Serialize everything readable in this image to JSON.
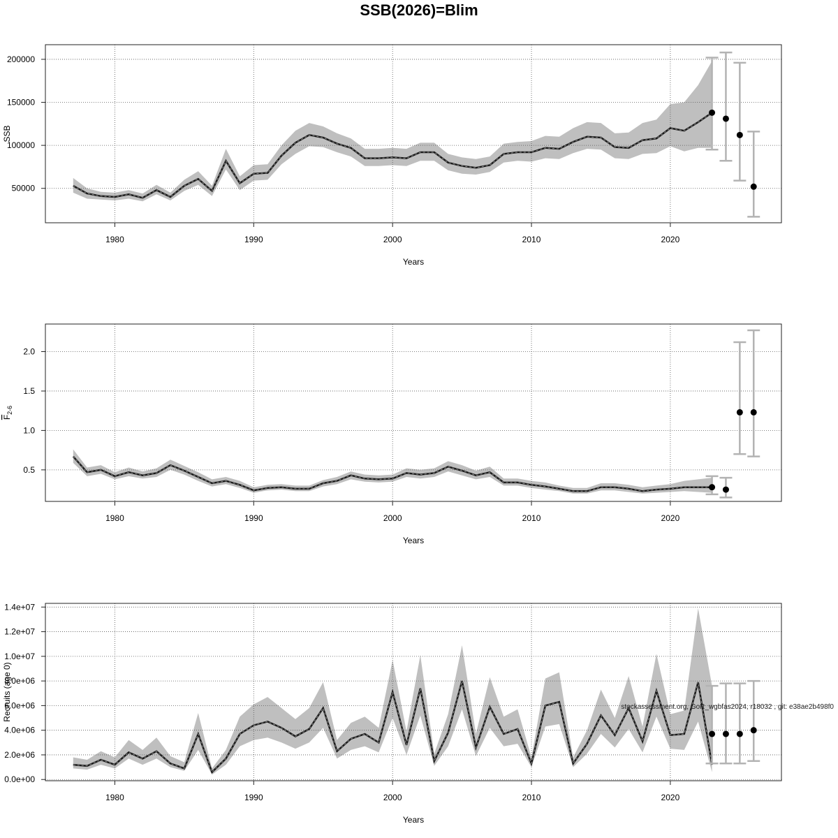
{
  "title": "SSB(2026)=Blim",
  "watermark": "stockassessment.org, GoR_wgbfas2024, r18032 , git: e38ae2b498f0",
  "colors": {
    "band": "#bfbfbf",
    "line": "#1a1a1a",
    "errorbar": "#b3b3b3",
    "point": "#000000",
    "grid": "#555555"
  },
  "chart_data": [
    {
      "type": "line",
      "name": "ssb-panel",
      "xlabel": "Years",
      "ylabel": "SSB",
      "xlim": [
        1975,
        2028
      ],
      "ylim": [
        10000,
        217000
      ],
      "xticks": [
        1980,
        1990,
        2000,
        2010,
        2020
      ],
      "yticks": [
        50000,
        100000,
        150000,
        200000
      ],
      "ytick_labels": [
        "50000",
        "100000",
        "150000",
        "200000"
      ],
      "grid": true,
      "x": [
        1977,
        1978,
        1979,
        1980,
        1981,
        1982,
        1983,
        1984,
        1985,
        1986,
        1987,
        1988,
        1989,
        1990,
        1991,
        1992,
        1993,
        1994,
        1995,
        1996,
        1997,
        1998,
        1999,
        2000,
        2001,
        2002,
        2003,
        2004,
        2005,
        2006,
        2007,
        2008,
        2009,
        2010,
        2011,
        2012,
        2013,
        2014,
        2015,
        2016,
        2017,
        2018,
        2019,
        2020,
        2021,
        2022,
        2023
      ],
      "estimate": [
        53000,
        44000,
        41000,
        40000,
        43000,
        39000,
        48000,
        40000,
        53000,
        61000,
        47000,
        82000,
        56000,
        67000,
        68000,
        88000,
        103000,
        112000,
        109000,
        102000,
        97000,
        85000,
        85000,
        86000,
        85000,
        92000,
        92000,
        80000,
        76000,
        74000,
        77000,
        90000,
        92000,
        92000,
        97000,
        96000,
        104000,
        110000,
        109000,
        98000,
        97000,
        106000,
        108000,
        120000,
        117000,
        127000,
        138000
      ],
      "lower": [
        45000,
        38000,
        37000,
        36000,
        38000,
        35000,
        43000,
        36000,
        47000,
        54000,
        41000,
        72000,
        48000,
        59000,
        60000,
        78000,
        90000,
        99000,
        98000,
        92000,
        87000,
        76000,
        76000,
        77000,
        76000,
        82000,
        82000,
        71000,
        67000,
        66000,
        69000,
        80000,
        82000,
        81000,
        85000,
        84000,
        91000,
        96000,
        95000,
        85000,
        84000,
        90000,
        91000,
        99000,
        93000,
        97000,
        97000
      ],
      "upper": [
        62000,
        50000,
        46000,
        45000,
        48000,
        44000,
        54000,
        45000,
        60000,
        70000,
        53000,
        96000,
        64000,
        77000,
        78000,
        100000,
        117000,
        126000,
        122000,
        114000,
        108000,
        96000,
        96000,
        97000,
        96000,
        103000,
        103000,
        90000,
        86000,
        84000,
        87000,
        102000,
        104000,
        105000,
        111000,
        110000,
        120000,
        127000,
        126000,
        114000,
        115000,
        126000,
        130000,
        148000,
        150000,
        170000,
        198000
      ],
      "forecast": [
        {
          "year": 2023,
          "value": 138000,
          "low": 95000,
          "high": 202000
        },
        {
          "year": 2024,
          "value": 131000,
          "low": 82000,
          "high": 208000
        },
        {
          "year": 2025,
          "value": 112000,
          "low": 59000,
          "high": 196000
        },
        {
          "year": 2026,
          "value": 52000,
          "low": 17000,
          "high": 116000
        }
      ]
    },
    {
      "type": "line",
      "name": "fbar-panel",
      "xlabel": "Years",
      "ylabel": "F2-6",
      "ylabel_main": "F",
      "ylabel_sub": "2-6",
      "xlim": [
        1975,
        2028
      ],
      "ylim": [
        0.1,
        2.35
      ],
      "xticks": [
        1980,
        1990,
        2000,
        2010,
        2020
      ],
      "yticks": [
        0.5,
        1.0,
        1.5,
        2.0
      ],
      "ytick_labels": [
        "0.5",
        "1.0",
        "1.5",
        "2.0"
      ],
      "grid": true,
      "x": [
        1977,
        1978,
        1979,
        1980,
        1981,
        1982,
        1983,
        1984,
        1985,
        1986,
        1987,
        1988,
        1989,
        1990,
        1991,
        1992,
        1993,
        1994,
        1995,
        1996,
        1997,
        1998,
        1999,
        2000,
        2001,
        2002,
        2003,
        2004,
        2005,
        2006,
        2007,
        2008,
        2009,
        2010,
        2011,
        2012,
        2013,
        2014,
        2015,
        2016,
        2017,
        2018,
        2019,
        2020,
        2021,
        2022,
        2023
      ],
      "estimate": [
        0.67,
        0.47,
        0.5,
        0.42,
        0.47,
        0.43,
        0.46,
        0.56,
        0.49,
        0.41,
        0.33,
        0.36,
        0.31,
        0.24,
        0.27,
        0.28,
        0.26,
        0.26,
        0.33,
        0.36,
        0.43,
        0.39,
        0.38,
        0.39,
        0.46,
        0.44,
        0.46,
        0.54,
        0.49,
        0.43,
        0.47,
        0.34,
        0.34,
        0.31,
        0.29,
        0.26,
        0.23,
        0.23,
        0.28,
        0.28,
        0.26,
        0.23,
        0.25,
        0.26,
        0.28,
        0.28,
        0.28
      ],
      "lower": [
        0.59,
        0.42,
        0.45,
        0.38,
        0.42,
        0.39,
        0.41,
        0.5,
        0.44,
        0.36,
        0.29,
        0.32,
        0.27,
        0.21,
        0.24,
        0.25,
        0.23,
        0.23,
        0.29,
        0.32,
        0.38,
        0.35,
        0.34,
        0.35,
        0.41,
        0.39,
        0.41,
        0.48,
        0.43,
        0.38,
        0.41,
        0.3,
        0.3,
        0.27,
        0.25,
        0.23,
        0.2,
        0.2,
        0.24,
        0.24,
        0.22,
        0.2,
        0.21,
        0.22,
        0.23,
        0.22,
        0.21
      ],
      "upper": [
        0.76,
        0.53,
        0.56,
        0.47,
        0.53,
        0.48,
        0.52,
        0.63,
        0.55,
        0.47,
        0.38,
        0.41,
        0.36,
        0.28,
        0.31,
        0.32,
        0.3,
        0.3,
        0.37,
        0.41,
        0.48,
        0.44,
        0.43,
        0.44,
        0.52,
        0.5,
        0.52,
        0.61,
        0.56,
        0.49,
        0.54,
        0.39,
        0.39,
        0.36,
        0.34,
        0.3,
        0.27,
        0.27,
        0.33,
        0.33,
        0.31,
        0.28,
        0.3,
        0.32,
        0.36,
        0.38,
        0.4
      ],
      "forecast": [
        {
          "year": 2023,
          "value": 0.28,
          "low": 0.19,
          "high": 0.42
        },
        {
          "year": 2024,
          "value": 0.25,
          "low": 0.15,
          "high": 0.4
        },
        {
          "year": 2025,
          "value": 1.23,
          "low": 0.7,
          "high": 2.12
        },
        {
          "year": 2026,
          "value": 1.23,
          "low": 0.67,
          "high": 2.27
        }
      ]
    },
    {
      "type": "line",
      "name": "recruits-panel",
      "xlabel": "Years",
      "ylabel": "Recruits (age 0)",
      "xlim": [
        1975,
        2028
      ],
      "ylim": [
        -100000,
        14300000
      ],
      "xticks": [
        1980,
        1990,
        2000,
        2010,
        2020
      ],
      "yticks": [
        0,
        2000000,
        4000000,
        6000000,
        8000000,
        10000000,
        12000000,
        14000000
      ],
      "ytick_labels": [
        "0.0e+00",
        "2.0e+06",
        "4.0e+06",
        "6.0e+06",
        "8.0e+06",
        "1.0e+07",
        "1.2e+07",
        "1.4e+07"
      ],
      "grid": true,
      "x": [
        1977,
        1978,
        1979,
        1980,
        1981,
        1982,
        1983,
        1984,
        1985,
        1986,
        1987,
        1988,
        1989,
        1990,
        1991,
        1992,
        1993,
        1994,
        1995,
        1996,
        1997,
        1998,
        1999,
        2000,
        2001,
        2002,
        2003,
        2004,
        2005,
        2006,
        2007,
        2008,
        2009,
        2010,
        2011,
        2012,
        2013,
        2014,
        2015,
        2016,
        2017,
        2018,
        2019,
        2020,
        2021,
        2022,
        2023
      ],
      "estimate": [
        1200000,
        1100000,
        1600000,
        1200000,
        2200000,
        1700000,
        2300000,
        1300000,
        900000,
        3700000,
        600000,
        1700000,
        3700000,
        4400000,
        4700000,
        4200000,
        3500000,
        4100000,
        5800000,
        2300000,
        3300000,
        3700000,
        3000000,
        7100000,
        2800000,
        7400000,
        1500000,
        3800000,
        8000000,
        2600000,
        5900000,
        3700000,
        4100000,
        1300000,
        6000000,
        6300000,
        1300000,
        2900000,
        5200000,
        3600000,
        5800000,
        3100000,
        7200000,
        3600000,
        3700000,
        7900000,
        1200000
      ],
      "lower": [
        900000,
        800000,
        1200000,
        900000,
        1700000,
        1200000,
        1700000,
        1000000,
        700000,
        2400000,
        400000,
        1200000,
        2700000,
        3200000,
        3400000,
        3000000,
        2500000,
        3000000,
        4200000,
        1700000,
        2400000,
        2700000,
        2200000,
        5000000,
        2000000,
        5200000,
        1100000,
        2700000,
        5700000,
        1900000,
        4200000,
        2700000,
        2900000,
        1000000,
        4300000,
        4500000,
        1000000,
        2100000,
        3700000,
        2600000,
        4100000,
        2200000,
        5100000,
        2500000,
        2400000,
        4700000,
        600000
      ],
      "upper": [
        1800000,
        1600000,
        2300000,
        1800000,
        3200000,
        2400000,
        3400000,
        1900000,
        1400000,
        5400000,
        900000,
        2400000,
        5100000,
        6100000,
        6700000,
        5800000,
        4900000,
        5800000,
        7900000,
        3200000,
        4600000,
        5100000,
        4200000,
        9700000,
        3900000,
        10100000,
        2100000,
        5300000,
        10900000,
        3700000,
        8300000,
        5100000,
        5700000,
        1800000,
        8200000,
        8700000,
        1800000,
        4000000,
        7300000,
        5000000,
        8400000,
        4300000,
        10200000,
        5300000,
        5600000,
        13900000,
        7600000
      ],
      "forecast": [
        {
          "year": 2023,
          "value": 3700000,
          "low": 1300000,
          "high": 7600000
        },
        {
          "year": 2024,
          "value": 3700000,
          "low": 1300000,
          "high": 7800000
        },
        {
          "year": 2025,
          "value": 3700000,
          "low": 1300000,
          "high": 7800000
        },
        {
          "year": 2026,
          "value": 4000000,
          "low": 1500000,
          "high": 8000000
        }
      ]
    }
  ]
}
